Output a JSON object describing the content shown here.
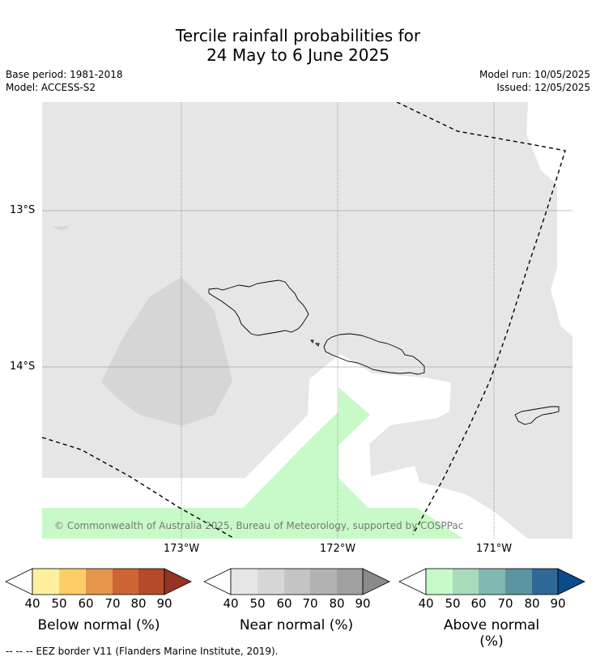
{
  "title_line1": "Tercile rainfall probabilities for",
  "title_line2": "24 May to 6 June 2025",
  "base_period": "Base period: 1981-2018",
  "model": "Model: ACCESS-S2",
  "model_run": "Model run: 10/05/2025",
  "issued": "Issued: 12/05/2025",
  "lat_labels": [
    "13°S",
    "14°S"
  ],
  "lon_labels": [
    "173°W",
    "172°W",
    "171°W"
  ],
  "copyright": "© Commonwealth of Australia 2025, Bureau of Meteorology, supported by COSPPac",
  "footnote": "--  --  -- EEZ border V11 (Flanders Marine Institute, 2019).",
  "colorbars": [
    {
      "title": "Below normal (%)",
      "ticks": [
        "40",
        "50",
        "60",
        "70",
        "80",
        "90"
      ],
      "colors": [
        "#fff0a0",
        "#ffcd66",
        "#e4974a",
        "#cf6434",
        "#b44a28",
        "#953424"
      ]
    },
    {
      "title": "Near normal (%)",
      "ticks": [
        "40",
        "50",
        "60",
        "70",
        "80",
        "90"
      ],
      "colors": [
        "#e6e6e6",
        "#d6d6d6",
        "#c4c4c4",
        "#b2b2b2",
        "#a0a0a0",
        "#8a8a8a"
      ]
    },
    {
      "title": "Above normal (%)",
      "ticks": [
        "40",
        "50",
        "60",
        "70",
        "80",
        "90"
      ],
      "colors": [
        "#c8fac8",
        "#a8dabc",
        "#80b8b2",
        "#5c94a2",
        "#306898",
        "#0c4a8a"
      ]
    }
  ]
}
